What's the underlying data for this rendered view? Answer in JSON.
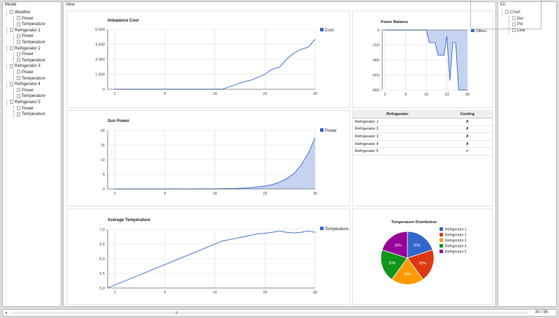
{
  "model_panel": {
    "title": "Model",
    "tree": [
      {
        "label": "Weather",
        "level": 0
      },
      {
        "label": "Power",
        "level": 1
      },
      {
        "label": "Temperature",
        "level": 1
      },
      {
        "label": "Refrigerator 1",
        "level": 0
      },
      {
        "label": "Power",
        "level": 1
      },
      {
        "label": "Temperature",
        "level": 1
      },
      {
        "label": "Refrigerator 2",
        "level": 0
      },
      {
        "label": "Power",
        "level": 1
      },
      {
        "label": "Temperature",
        "level": 1
      },
      {
        "label": "Refrigerator 3",
        "level": 0
      },
      {
        "label": "Power",
        "level": 1
      },
      {
        "label": "Temperature",
        "level": 1
      },
      {
        "label": "Refrigerator 4",
        "level": 0
      },
      {
        "label": "Power",
        "level": 1
      },
      {
        "label": "Temperature",
        "level": 1
      },
      {
        "label": "Refrigerator 5",
        "level": 0
      },
      {
        "label": "Power",
        "level": 1
      },
      {
        "label": "Temperature",
        "level": 1
      }
    ]
  },
  "view_panel": {
    "title": "View"
  },
  "kit_panel": {
    "title": "Kit",
    "tree": [
      {
        "label": "Chart",
        "level": 0
      },
      {
        "label": "Bar",
        "level": 1
      },
      {
        "label": "Pie",
        "level": 1
      },
      {
        "label": "Line",
        "level": 1
      }
    ]
  },
  "bottom_bar": {
    "left_arrow": "◂",
    "thumb": "≡",
    "page_count": "30 / 96"
  },
  "colors": {
    "line": "#3366cc",
    "area": "#c5d3f1",
    "grid": "#d9d9d9"
  },
  "fridge_table": {
    "headers": [
      "Refrigerator",
      "Cooling"
    ],
    "rows": [
      {
        "name": "Refrigerator 1",
        "cooling": "✗"
      },
      {
        "name": "Refrigerator 2",
        "cooling": "✗"
      },
      {
        "name": "Refrigerator 3",
        "cooling": "✗"
      },
      {
        "name": "Refrigerator 4",
        "cooling": "✗"
      },
      {
        "name": "Refrigerator 5",
        "cooling": "✓"
      }
    ]
  },
  "chart_data": [
    {
      "id": "imbalance",
      "type": "line",
      "title": "Imbalance Cost",
      "series": [
        {
          "name": "Cost",
          "x": [
            2,
            9,
            16,
            17,
            20,
            21,
            23,
            24,
            25,
            26,
            27,
            28,
            29,
            30
          ],
          "y": [
            0,
            0,
            0,
            0,
            750,
            900,
            1500,
            2000,
            2200,
            3000,
            3600,
            4000,
            4200,
            5000
          ]
        }
      ],
      "xticks": [
        2,
        9,
        16,
        23,
        30
      ],
      "yticks": [
        "0",
        "1.500",
        "3.000",
        "4.500",
        "6.000"
      ],
      "xlim": [
        1,
        30
      ],
      "ylim": [
        0,
        6000
      ],
      "legend": "right",
      "grid": true
    },
    {
      "id": "powerbalance",
      "type": "area",
      "title": "Power Balance",
      "series": [
        {
          "name": "Differe...",
          "x": [
            2,
            9,
            16,
            17,
            18,
            19,
            20,
            21,
            22,
            23,
            24,
            25,
            26,
            27,
            28,
            29,
            30
          ],
          "y": [
            0,
            0,
            0,
            -200,
            -200,
            -200,
            -400,
            -400,
            -400,
            -100,
            -800,
            -200,
            -200,
            -950,
            -950,
            -950,
            -950
          ]
        }
      ],
      "xticks": [
        2,
        9,
        16,
        23,
        30
      ],
      "yticks": [
        "-800",
        "-600",
        "-400",
        "-200",
        "0"
      ],
      "xlim": [
        1,
        30
      ],
      "ylim": [
        -950,
        0
      ],
      "legend": "right",
      "grid": true
    },
    {
      "id": "sunpower",
      "type": "area",
      "title": "Sun Power",
      "series": [
        {
          "name": "Power",
          "x": [
            2,
            9,
            16,
            17,
            18,
            19,
            20,
            21,
            22,
            23,
            24,
            25,
            26,
            27,
            28,
            29,
            30
          ],
          "y": [
            0,
            0,
            0.05,
            0.08,
            0.12,
            0.2,
            0.3,
            0.45,
            0.7,
            1.0,
            1.5,
            2.3,
            3.5,
            5.2,
            8.0,
            12.0,
            17.5
          ]
        }
      ],
      "xticks": [
        2,
        9,
        16,
        23,
        30
      ],
      "yticks": [
        "0",
        "5",
        "10",
        "15",
        "20"
      ],
      "xlim": [
        1,
        30
      ],
      "ylim": [
        0,
        20
      ],
      "legend": "right",
      "grid": true
    },
    {
      "id": "avgtemp",
      "type": "line",
      "title": "Average Temperature",
      "series": [
        {
          "name": "Temperature",
          "x": [
            1,
            16,
            17,
            18,
            19,
            20,
            21,
            22,
            23,
            24,
            25,
            26,
            27,
            28,
            29,
            30
          ],
          "y": [
            5.0,
            6.5,
            6.6,
            6.65,
            6.7,
            6.75,
            6.8,
            6.85,
            6.87,
            6.9,
            6.95,
            6.9,
            6.88,
            6.9,
            6.95,
            6.9
          ]
        }
      ],
      "xticks": [
        2,
        9,
        16,
        23,
        30
      ],
      "yticks": [
        "5,0",
        "5,5",
        "6,0",
        "6,5",
        "7,0"
      ],
      "xlim": [
        1,
        30
      ],
      "ylim": [
        5,
        7
      ],
      "legend": "right",
      "grid": true
    },
    {
      "id": "tempdist",
      "type": "pie",
      "title": "Temperature Distribution",
      "categories": [
        "Refrigerator 1",
        "Refrigerator 2",
        "Refrigerator 3",
        "Refrigerator 4",
        "Refrigerator 5"
      ],
      "values": [
        20,
        20,
        20,
        20,
        20
      ],
      "labels": [
        "20%",
        "20%",
        "20%",
        "20%",
        "20%"
      ],
      "colors": [
        "#3366cc",
        "#dc3912",
        "#ff9900",
        "#109618",
        "#990099"
      ],
      "legend": "right"
    }
  ]
}
